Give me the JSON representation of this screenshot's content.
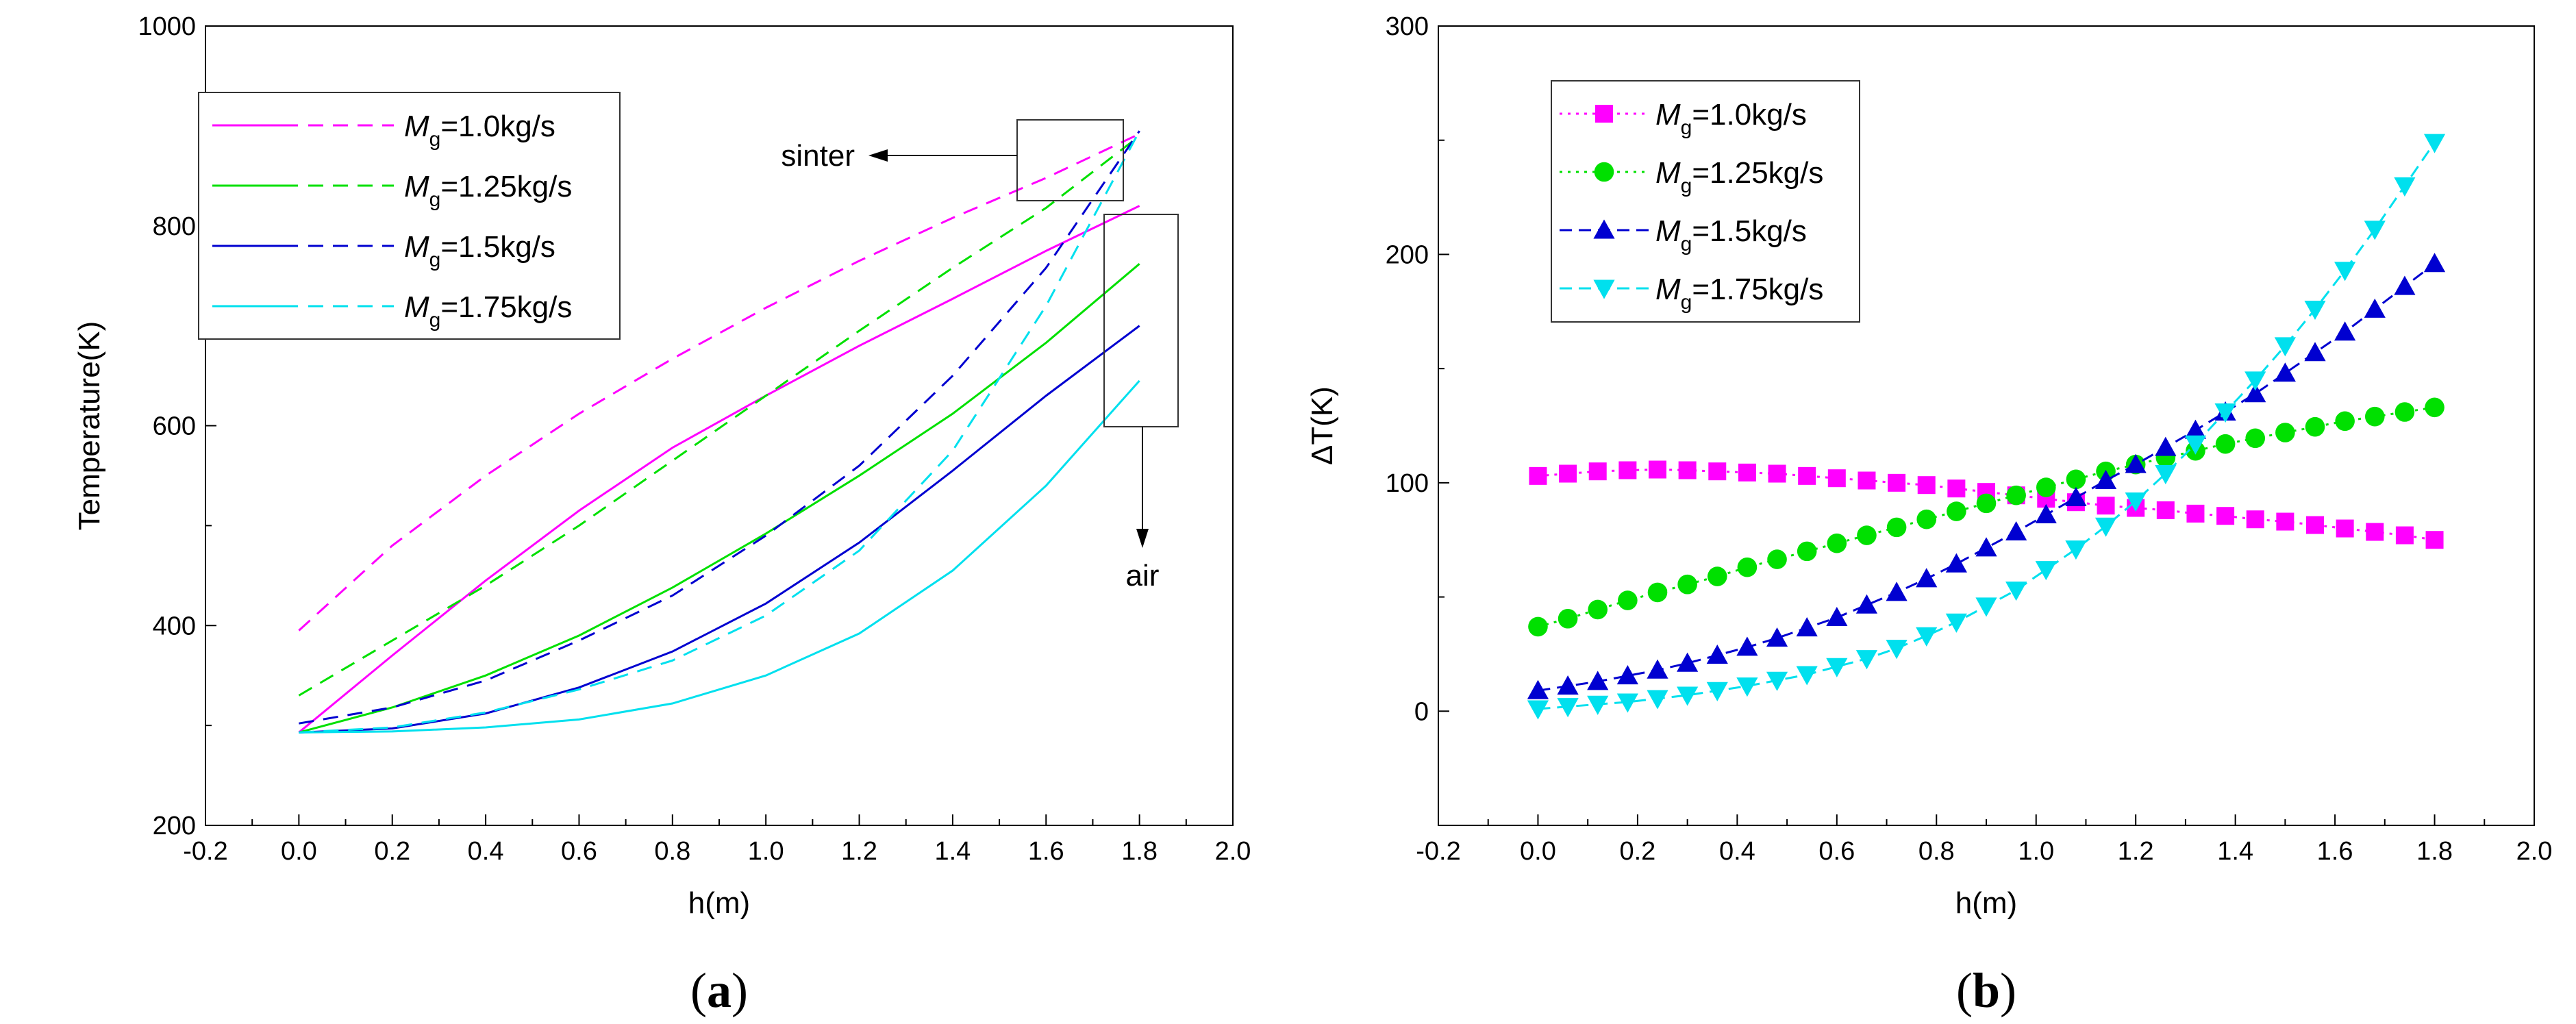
{
  "chart_data": [
    {
      "id": "a",
      "type": "line",
      "panel_label": "(a)",
      "panel_label_parts": [
        "(",
        "a",
        ")"
      ],
      "title": "",
      "xlabel": "h(m)",
      "ylabel": "Temperature(K)",
      "xlim": [
        -0.2,
        2.0
      ],
      "ylim": [
        200,
        1000
      ],
      "xticks": [
        -0.2,
        0.0,
        0.2,
        0.4,
        0.6,
        0.8,
        1.0,
        1.2,
        1.4,
        1.6,
        1.8,
        2.0
      ],
      "xtick_labels": [
        "-0.2",
        "0.0",
        "0.2",
        "0.4",
        "0.6",
        "0.8",
        "1.0",
        "1.2",
        "1.4",
        "1.6",
        "1.8",
        "2.0"
      ],
      "yticks": [
        200,
        400,
        600,
        800,
        1000
      ],
      "ytick_labels": [
        "200",
        "400",
        "600",
        "800",
        "1000"
      ],
      "legend_position": "top-left",
      "legend_entries": [
        {
          "prefix": "M",
          "sub": "g",
          "suffix": "=1.0kg/s"
        },
        {
          "prefix": "M",
          "sub": "g",
          "suffix": "=1.25kg/s"
        },
        {
          "prefix": "M",
          "sub": "g",
          "suffix": "=1.5kg/s"
        },
        {
          "prefix": "M",
          "sub": "g",
          "suffix": "=1.75kg/s"
        }
      ],
      "series": [
        {
          "name": "Mg=1.0kg/s air (solid)",
          "color": "#ff00ff",
          "style": "solid",
          "x": [
            0.0,
            0.2,
            0.4,
            0.6,
            0.8,
            1.0,
            1.2,
            1.4,
            1.6,
            1.8
          ],
          "y": [
            293,
            370,
            445,
            515,
            578,
            630,
            680,
            727,
            775,
            820
          ]
        },
        {
          "name": "Mg=1.0kg/s sinter (dashed)",
          "color": "#ff00ff",
          "style": "dashed",
          "x": [
            0.0,
            0.2,
            0.4,
            0.6,
            0.8,
            1.0,
            1.2,
            1.4,
            1.6,
            1.8
          ],
          "y": [
            395,
            480,
            550,
            612,
            667,
            718,
            765,
            808,
            848,
            892
          ]
        },
        {
          "name": "Mg=1.25kg/s air (solid)",
          "color": "#00e000",
          "style": "solid",
          "x": [
            0.0,
            0.2,
            0.4,
            0.6,
            0.8,
            1.0,
            1.2,
            1.4,
            1.6,
            1.8
          ],
          "y": [
            293,
            318,
            350,
            390,
            438,
            492,
            550,
            612,
            683,
            762
          ]
        },
        {
          "name": "Mg=1.25kg/s sinter (dashed)",
          "color": "#00e000",
          "style": "dashed",
          "x": [
            0.0,
            0.2,
            0.4,
            0.6,
            0.8,
            1.0,
            1.2,
            1.4,
            1.6,
            1.8
          ],
          "y": [
            330,
            385,
            440,
            500,
            565,
            630,
            695,
            758,
            818,
            890
          ]
        },
        {
          "name": "Mg=1.5kg/s air (solid)",
          "color": "#0000d0",
          "style": "solid",
          "x": [
            0.0,
            0.2,
            0.4,
            0.6,
            0.8,
            1.0,
            1.2,
            1.4,
            1.6,
            1.8
          ],
          "y": [
            293,
            297,
            312,
            338,
            374,
            422,
            483,
            555,
            630,
            700
          ]
        },
        {
          "name": "Mg=1.5kg/s sinter (dashed)",
          "color": "#0000d0",
          "style": "dashed",
          "x": [
            0.0,
            0.2,
            0.4,
            0.6,
            0.8,
            1.0,
            1.2,
            1.4,
            1.6,
            1.8
          ],
          "y": [
            302,
            318,
            345,
            385,
            430,
            490,
            560,
            650,
            758,
            895
          ]
        },
        {
          "name": "Mg=1.75kg/s air (solid)",
          "color": "#00e0ee",
          "style": "solid",
          "x": [
            0.0,
            0.2,
            0.4,
            0.6,
            0.8,
            1.0,
            1.2,
            1.4,
            1.6,
            1.8
          ],
          "y": [
            293,
            294,
            298,
            306,
            322,
            350,
            392,
            455,
            540,
            645
          ]
        },
        {
          "name": "Mg=1.75kg/s sinter (dashed)",
          "color": "#00e0ee",
          "style": "dashed",
          "x": [
            0.0,
            0.2,
            0.4,
            0.6,
            0.8,
            1.0,
            1.2,
            1.4,
            1.6,
            1.8
          ],
          "y": [
            293,
            298,
            313,
            336,
            365,
            410,
            475,
            575,
            720,
            895
          ]
        }
      ],
      "annotations": [
        {
          "text": "sinter",
          "target": "top-right curve ends (dashed)",
          "arrow": "left"
        },
        {
          "text": "air",
          "target": "right curve ends (solid)",
          "arrow": "down"
        }
      ]
    },
    {
      "id": "b",
      "type": "line",
      "panel_label": "(b)",
      "panel_label_parts": [
        "(",
        "b",
        ")"
      ],
      "title": "",
      "xlabel": "h(m)",
      "ylabel": "ΔT(K)",
      "xlim": [
        -0.2,
        2.0
      ],
      "ylim": [
        -50,
        300
      ],
      "xticks": [
        -0.2,
        0.0,
        0.2,
        0.4,
        0.6,
        0.8,
        1.0,
        1.2,
        1.4,
        1.6,
        1.8,
        2.0
      ],
      "xtick_labels": [
        "-0.2",
        "0.0",
        "0.2",
        "0.4",
        "0.6",
        "0.8",
        "1.0",
        "1.2",
        "1.4",
        "1.6",
        "1.8",
        "2.0"
      ],
      "yticks": [
        0,
        100,
        200,
        300
      ],
      "ytick_labels": [
        "0",
        "100",
        "200",
        "300"
      ],
      "legend_position": "top-left",
      "legend_entries": [
        {
          "prefix": "M",
          "sub": "g",
          "suffix": "=1.0kg/s"
        },
        {
          "prefix": "M",
          "sub": "g",
          "suffix": "=1.25kg/s"
        },
        {
          "prefix": "M",
          "sub": "g",
          "suffix": "=1.5kg/s"
        },
        {
          "prefix": "M",
          "sub": "g",
          "suffix": "=1.75kg/s"
        }
      ],
      "x": [
        0.0,
        0.06,
        0.12,
        0.18,
        0.24,
        0.3,
        0.36,
        0.42,
        0.48,
        0.54,
        0.6,
        0.66,
        0.72,
        0.78,
        0.84,
        0.9,
        0.96,
        1.02,
        1.08,
        1.14,
        1.2,
        1.26,
        1.32,
        1.38,
        1.44,
        1.5,
        1.56,
        1.62,
        1.68,
        1.74,
        1.8
      ],
      "series": [
        {
          "name": "Mg=1.0kg/s",
          "color": "#ff00ff",
          "marker": "square",
          "values": [
            103,
            104,
            105,
            105.5,
            105.8,
            105.5,
            105,
            104.5,
            104,
            103,
            102,
            101,
            100,
            99,
            97.5,
            96,
            94.5,
            93,
            91.5,
            90,
            89,
            88,
            86.5,
            85.5,
            84,
            83,
            81.5,
            80,
            78.5,
            77,
            75
          ]
        },
        {
          "name": "Mg=1.25kg/s",
          "color": "#00e000",
          "marker": "circle",
          "values": [
            37,
            40.5,
            44.5,
            48.5,
            52,
            55.5,
            59,
            63,
            66.5,
            70,
            73.5,
            77,
            80.5,
            84,
            87.5,
            91,
            94.5,
            98,
            101.5,
            105,
            108,
            111,
            114,
            117,
            119.5,
            122,
            124.5,
            127,
            129,
            131,
            133
          ]
        },
        {
          "name": "Mg=1.5kg/s",
          "color": "#0000d0",
          "marker": "triangle-up",
          "values": [
            9,
            11,
            13,
            15.5,
            18,
            21,
            24.5,
            28,
            32,
            36.5,
            41,
            46.5,
            52,
            58,
            64.5,
            71.5,
            78.5,
            86,
            93.5,
            101,
            108,
            115.5,
            123,
            131,
            139,
            148,
            157,
            166,
            176,
            186,
            196
          ]
        },
        {
          "name": "Mg=1.75kg/s",
          "color": "#00e0ee",
          "marker": "triangle-down",
          "values": [
            1,
            2,
            3,
            4,
            5.5,
            7,
            9,
            11,
            13.5,
            16,
            19.5,
            23,
            27.5,
            33,
            39,
            46,
            53,
            62,
            71,
            81,
            92,
            104,
            117,
            131,
            145,
            160,
            176,
            193,
            211,
            230,
            249
          ]
        }
      ]
    }
  ],
  "annotations_text": {
    "sinter": "sinter",
    "air": "air"
  }
}
